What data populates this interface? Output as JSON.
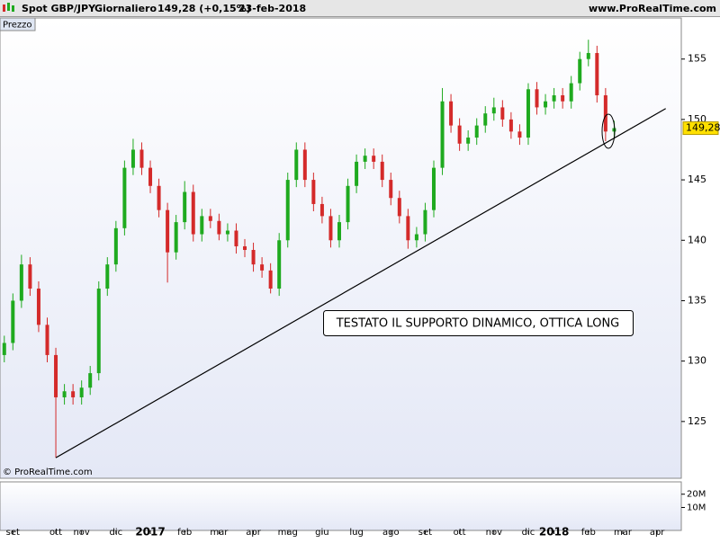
{
  "chart_data": {
    "type": "candlestick",
    "title": "Spot GBP/JPY",
    "period": "Giornaliero",
    "last_change": "149,28 (+0,15%)",
    "date": "23-feb-2018",
    "source": "www.ProRealTime.com",
    "panel_label": "Prezzo",
    "copyright": "© ProRealTime.com",
    "annotation": "TESTATO IL SUPPORTO DINAMICO, OTTICA LONG",
    "up_color": "#1faa1f",
    "down_color": "#d42a2a",
    "categories": [
      null,
      "set",
      null,
      null,
      null,
      null,
      "ott",
      null,
      null,
      "nov",
      null,
      null,
      null,
      "dic",
      null,
      null,
      null,
      "2017",
      null,
      null,
      null,
      "feb",
      null,
      null,
      null,
      "mar",
      null,
      null,
      null,
      "apr",
      null,
      null,
      null,
      "mag",
      null,
      null,
      null,
      "giu",
      null,
      null,
      null,
      "lug",
      null,
      null,
      null,
      "ago",
      null,
      null,
      null,
      "set",
      null,
      null,
      null,
      "ott",
      null,
      null,
      null,
      "nov",
      null,
      null,
      null,
      "dic",
      null,
      null,
      "2018",
      null,
      null,
      null,
      "feb",
      null,
      null,
      null,
      "mar",
      null,
      null,
      null,
      "apr",
      null,
      null
    ],
    "open": [
      130.5,
      131.5,
      135,
      138,
      136,
      133,
      130.5,
      127,
      127.5,
      127,
      127.8,
      129,
      136,
      138,
      141,
      146,
      147.5,
      146,
      144.5,
      142.5,
      139,
      141.5,
      144,
      140.5,
      142,
      141.6,
      140.5,
      140.8,
      139.5,
      139.2,
      138,
      137.5,
      136,
      140,
      145,
      147.5,
      145,
      143,
      142,
      140,
      141.5,
      144.5,
      146.5,
      147,
      146.5,
      145,
      143.5,
      142,
      140,
      140.5,
      142.5,
      146,
      151.5,
      149.5,
      148,
      148.5,
      149.5,
      150.5,
      151,
      150,
      149,
      148.5,
      152.5,
      151,
      151.5,
      152,
      151.5,
      153,
      155,
      155.5,
      152,
      149,
      null,
      null,
      null,
      null,
      null,
      null,
      null
    ],
    "high": [
      132.1,
      135.6,
      138.8,
      138.6,
      136.6,
      133.6,
      131.1,
      128.1,
      128.1,
      128.4,
      129.6,
      136.6,
      138.6,
      141.6,
      146.6,
      148.4,
      148.1,
      146.6,
      145.1,
      143.1,
      142.1,
      144.9,
      144.6,
      142.6,
      142.6,
      142.2,
      141.4,
      141.4,
      140.1,
      139.8,
      138.6,
      138.1,
      140.6,
      145.6,
      148.1,
      148.1,
      145.6,
      143.6,
      142.6,
      142.1,
      145.1,
      147.1,
      147.6,
      147.6,
      147.1,
      145.6,
      144.1,
      142.6,
      141.1,
      143.1,
      146.6,
      152.6,
      152.1,
      150.1,
      149.1,
      150.1,
      151.1,
      151.8,
      151.6,
      150.6,
      149.6,
      153.0,
      153.1,
      152.1,
      152.6,
      152.6,
      153.6,
      155.6,
      156.6,
      156.1,
      152.6,
      149.9,
      null,
      null,
      null,
      null,
      null,
      null,
      null
    ],
    "low": [
      129.9,
      130.9,
      134.4,
      135.4,
      132.4,
      129.9,
      122.0,
      126.4,
      126.4,
      126.4,
      127.2,
      128.4,
      135.4,
      137.4,
      140.4,
      145.4,
      145.4,
      143.9,
      141.9,
      136.5,
      138.4,
      140.9,
      139.9,
      139.9,
      141.0,
      140.0,
      139.9,
      138.9,
      138.6,
      137.4,
      136.9,
      135.6,
      135.4,
      139.4,
      144.4,
      144.4,
      142.4,
      141.4,
      139.4,
      139.4,
      140.9,
      143.9,
      145.9,
      145.9,
      144.4,
      142.9,
      141.4,
      139.3,
      139.4,
      139.9,
      141.9,
      145.4,
      148.9,
      147.4,
      147.4,
      147.9,
      148.9,
      149.9,
      149.4,
      148.4,
      147.9,
      147.9,
      150.4,
      150.4,
      150.9,
      150.9,
      150.9,
      152.4,
      154.4,
      151.4,
      148.2,
      148.4,
      null,
      null,
      null,
      null,
      null,
      null,
      null
    ],
    "close": [
      131.5,
      135,
      138,
      136,
      133,
      130.5,
      127,
      127.5,
      127,
      127.8,
      129,
      136,
      138,
      141,
      146,
      147.5,
      146,
      144.5,
      142.5,
      139,
      141.5,
      144,
      140.5,
      142,
      141.6,
      140.5,
      140.8,
      139.5,
      139.2,
      138,
      137.5,
      136,
      140,
      145,
      147.5,
      145,
      143,
      142,
      140,
      141.5,
      144.5,
      146.5,
      147,
      146.5,
      145,
      143.5,
      142,
      140,
      140.5,
      142.5,
      146,
      151.5,
      149.5,
      148,
      148.5,
      149.5,
      150.5,
      151,
      150,
      149,
      148.5,
      152.5,
      151,
      151.5,
      152,
      151.5,
      153,
      155,
      155.5,
      152,
      149,
      149.28,
      null,
      null,
      null,
      null,
      null,
      null,
      null
    ],
    "ylim": [
      120.3,
      158.4
    ],
    "yticks": [
      125,
      130,
      135,
      140,
      145,
      150,
      155
    ],
    "last_price": {
      "value": 149.28,
      "label": "149,28"
    },
    "trendline": {
      "x": [
        6,
        77
      ],
      "y": [
        122.0,
        150.9
      ],
      "color": "#000000"
    },
    "volume_panel": {
      "ylim": [
        -7300000,
        29300000
      ],
      "yticks": [
        {
          "value": 10000000,
          "label": "10M"
        },
        {
          "value": 20000000,
          "label": "20M"
        }
      ]
    }
  }
}
